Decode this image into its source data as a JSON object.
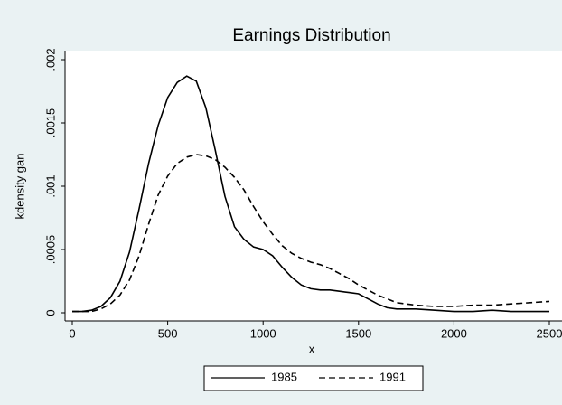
{
  "chart_data": {
    "type": "line",
    "title": "Earnings Distribution",
    "x_label": "x",
    "y_label": "kdensity gan",
    "x": [
      0,
      50,
      100,
      150,
      200,
      250,
      300,
      350,
      400,
      450,
      500,
      550,
      600,
      650,
      700,
      750,
      800,
      850,
      900,
      950,
      1000,
      1050,
      1100,
      1150,
      1200,
      1250,
      1300,
      1350,
      1400,
      1450,
      1500,
      1550,
      1600,
      1650,
      1700,
      1800,
      1900,
      2000,
      2100,
      2200,
      2300,
      2400,
      2500
    ],
    "series": [
      {
        "name": "1985",
        "color": "#000000",
        "line_style": "solid",
        "values": [
          1e-05,
          1e-05,
          2e-05,
          5e-05,
          0.00012,
          0.00025,
          0.00048,
          0.00082,
          0.00118,
          0.00148,
          0.0017,
          0.00182,
          0.00187,
          0.00183,
          0.00162,
          0.00128,
          0.00092,
          0.00068,
          0.00058,
          0.00052,
          0.0005,
          0.00045,
          0.00036,
          0.00028,
          0.00022,
          0.00019,
          0.00018,
          0.00018,
          0.00017,
          0.00016,
          0.00015,
          0.00011,
          7e-05,
          4e-05,
          3e-05,
          3e-05,
          2e-05,
          1e-05,
          1e-05,
          2e-05,
          1e-05,
          1e-05,
          1e-05
        ]
      },
      {
        "name": "1991",
        "color": "#000000",
        "line_style": "dash",
        "values": [
          1e-05,
          1e-05,
          1e-05,
          3e-05,
          7e-05,
          0.00014,
          0.00026,
          0.00045,
          0.0007,
          0.00093,
          0.00108,
          0.00118,
          0.00123,
          0.00125,
          0.00124,
          0.00121,
          0.00115,
          0.00107,
          0.00097,
          0.00084,
          0.00072,
          0.00062,
          0.00053,
          0.00047,
          0.00043,
          0.0004,
          0.00038,
          0.00035,
          0.00031,
          0.00027,
          0.00022,
          0.00018,
          0.00014,
          0.00011,
          8e-05,
          6e-05,
          5e-05,
          5e-05,
          6e-05,
          6e-05,
          7e-05,
          8e-05,
          9e-05
        ]
      }
    ],
    "xlim": [
      0,
      2500
    ],
    "xticks": [
      0,
      500,
      1000,
      1500,
      2000,
      2500
    ],
    "ylim": [
      0,
      0.002
    ],
    "yticks": [
      0,
      {
        "value": 0.0005,
        "label": ".0005"
      },
      {
        "value": 0.001,
        "label": ".001"
      },
      {
        "value": 0.0015,
        "label": ".0015"
      },
      {
        "value": 0.002,
        "label": ".002"
      }
    ],
    "legend": "bottom"
  }
}
